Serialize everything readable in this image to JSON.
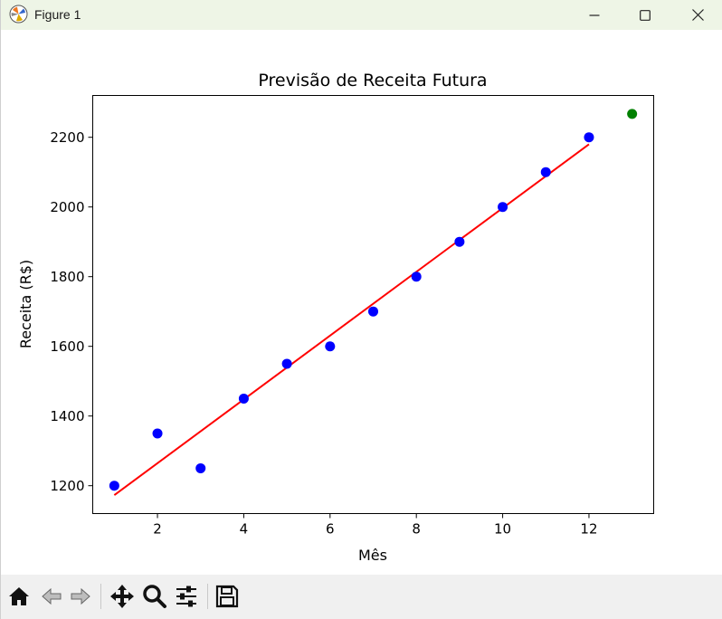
{
  "window": {
    "title": "Figure 1",
    "icons": {
      "app": "matplotlib-figure-icon",
      "minimize": "minimize-icon",
      "maximize": "maximize-icon",
      "close": "close-icon"
    }
  },
  "toolbar": {
    "buttons": [
      {
        "name": "home",
        "icon": "home-icon"
      },
      {
        "name": "back",
        "icon": "back-arrow-icon"
      },
      {
        "name": "forward",
        "icon": "forward-arrow-icon"
      },
      {
        "name": "pan",
        "icon": "move-icon"
      },
      {
        "name": "zoom",
        "icon": "zoom-icon"
      },
      {
        "name": "configure-subplots",
        "icon": "sliders-icon"
      },
      {
        "name": "save",
        "icon": "floppy-disk-icon"
      }
    ]
  },
  "chart_data": {
    "type": "scatter",
    "title": "Previsão de Receita Futura",
    "xlabel": "Mês",
    "ylabel": "Receita (R$)",
    "xlim": [
      0.5,
      13.5
    ],
    "ylim": [
      1120,
      2320
    ],
    "xticks": [
      2,
      4,
      6,
      8,
      10,
      12
    ],
    "yticks": [
      1200,
      1400,
      1600,
      1800,
      2000,
      2200
    ],
    "grid": false,
    "legend": false,
    "series": [
      {
        "type": "scatter",
        "color": "#0000ff",
        "x": [
          1,
          2,
          3,
          4,
          5,
          6,
          7,
          8,
          9,
          10,
          11,
          12
        ],
        "y": [
          1200,
          1350,
          1250,
          1450,
          1550,
          1600,
          1700,
          1800,
          1900,
          2000,
          2100,
          2200
        ]
      },
      {
        "type": "line",
        "color": "#ff0000",
        "x": [
          1,
          12
        ],
        "y": [
          1173,
          2180
        ]
      },
      {
        "type": "scatter",
        "color": "#008000",
        "x": [
          13
        ],
        "y": [
          2267
        ]
      }
    ]
  }
}
